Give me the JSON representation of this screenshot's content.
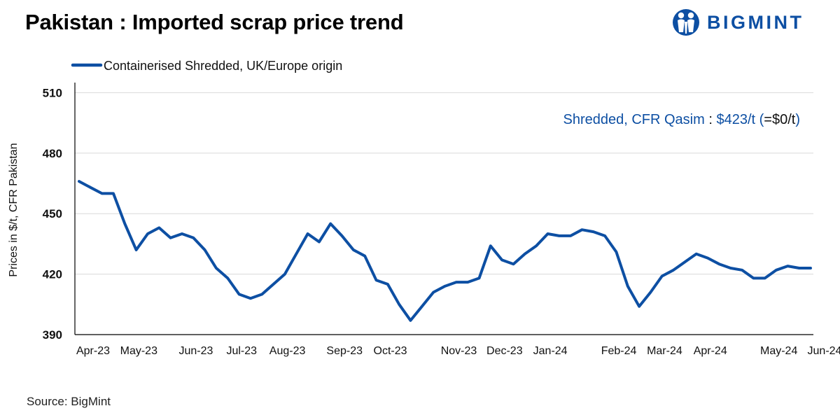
{
  "header": {
    "title": "Pakistan : Imported scrap price trend",
    "logo_text": "BIGMINT",
    "logo_icon": "bigmint-people-icon"
  },
  "footer": {
    "source": "Source: BigMint"
  },
  "annotation": {
    "label": "Shredded, CFR Qasim",
    "separator": " : ",
    "price": "$423/t",
    "change_open": " (",
    "change": "=$0/t",
    "change_close": ")"
  },
  "colors": {
    "series": "#0d4fa3",
    "axis": "#000000",
    "grid": "#d9d9d9",
    "annotation_blue": "#0d4fa3"
  },
  "chart_data": {
    "type": "line",
    "title": "Pakistan : Imported scrap price trend",
    "xlabel": "",
    "ylabel": "Prices in $/t, CFR Pakistan",
    "ylim": [
      390,
      515
    ],
    "yticks": [
      390,
      420,
      450,
      480,
      510
    ],
    "grid": "horizontal",
    "legend_position": "top-left",
    "x_tick_labels": [
      "Apr-23",
      "May-23",
      "Jun-23",
      "Jul-23",
      "Aug-23",
      "Sep-23",
      "Oct-23",
      "Nov-23",
      "Dec-23",
      "Jan-24",
      "Feb-24",
      "Mar-24",
      "Apr-24",
      "May-24",
      "Jun-24"
    ],
    "x_tick_index": [
      0,
      4,
      9,
      13,
      17,
      22,
      26,
      32,
      36,
      40,
      46,
      50,
      54,
      60,
      64
    ],
    "series": [
      {
        "name": "Containerised Shredded, UK/Europe origin",
        "values": [
          466,
          463,
          460,
          460,
          445,
          432,
          440,
          443,
          438,
          440,
          438,
          432,
          423,
          418,
          410,
          408,
          410,
          415,
          420,
          430,
          440,
          436,
          445,
          439,
          432,
          429,
          417,
          415,
          405,
          397,
          404,
          411,
          414,
          416,
          416,
          418,
          434,
          427,
          425,
          430,
          434,
          440,
          439,
          439,
          442,
          441,
          439,
          431,
          414,
          404,
          411,
          419,
          422,
          426,
          430,
          428,
          425,
          423,
          422,
          418,
          418,
          422,
          424,
          423,
          423
        ]
      }
    ]
  }
}
